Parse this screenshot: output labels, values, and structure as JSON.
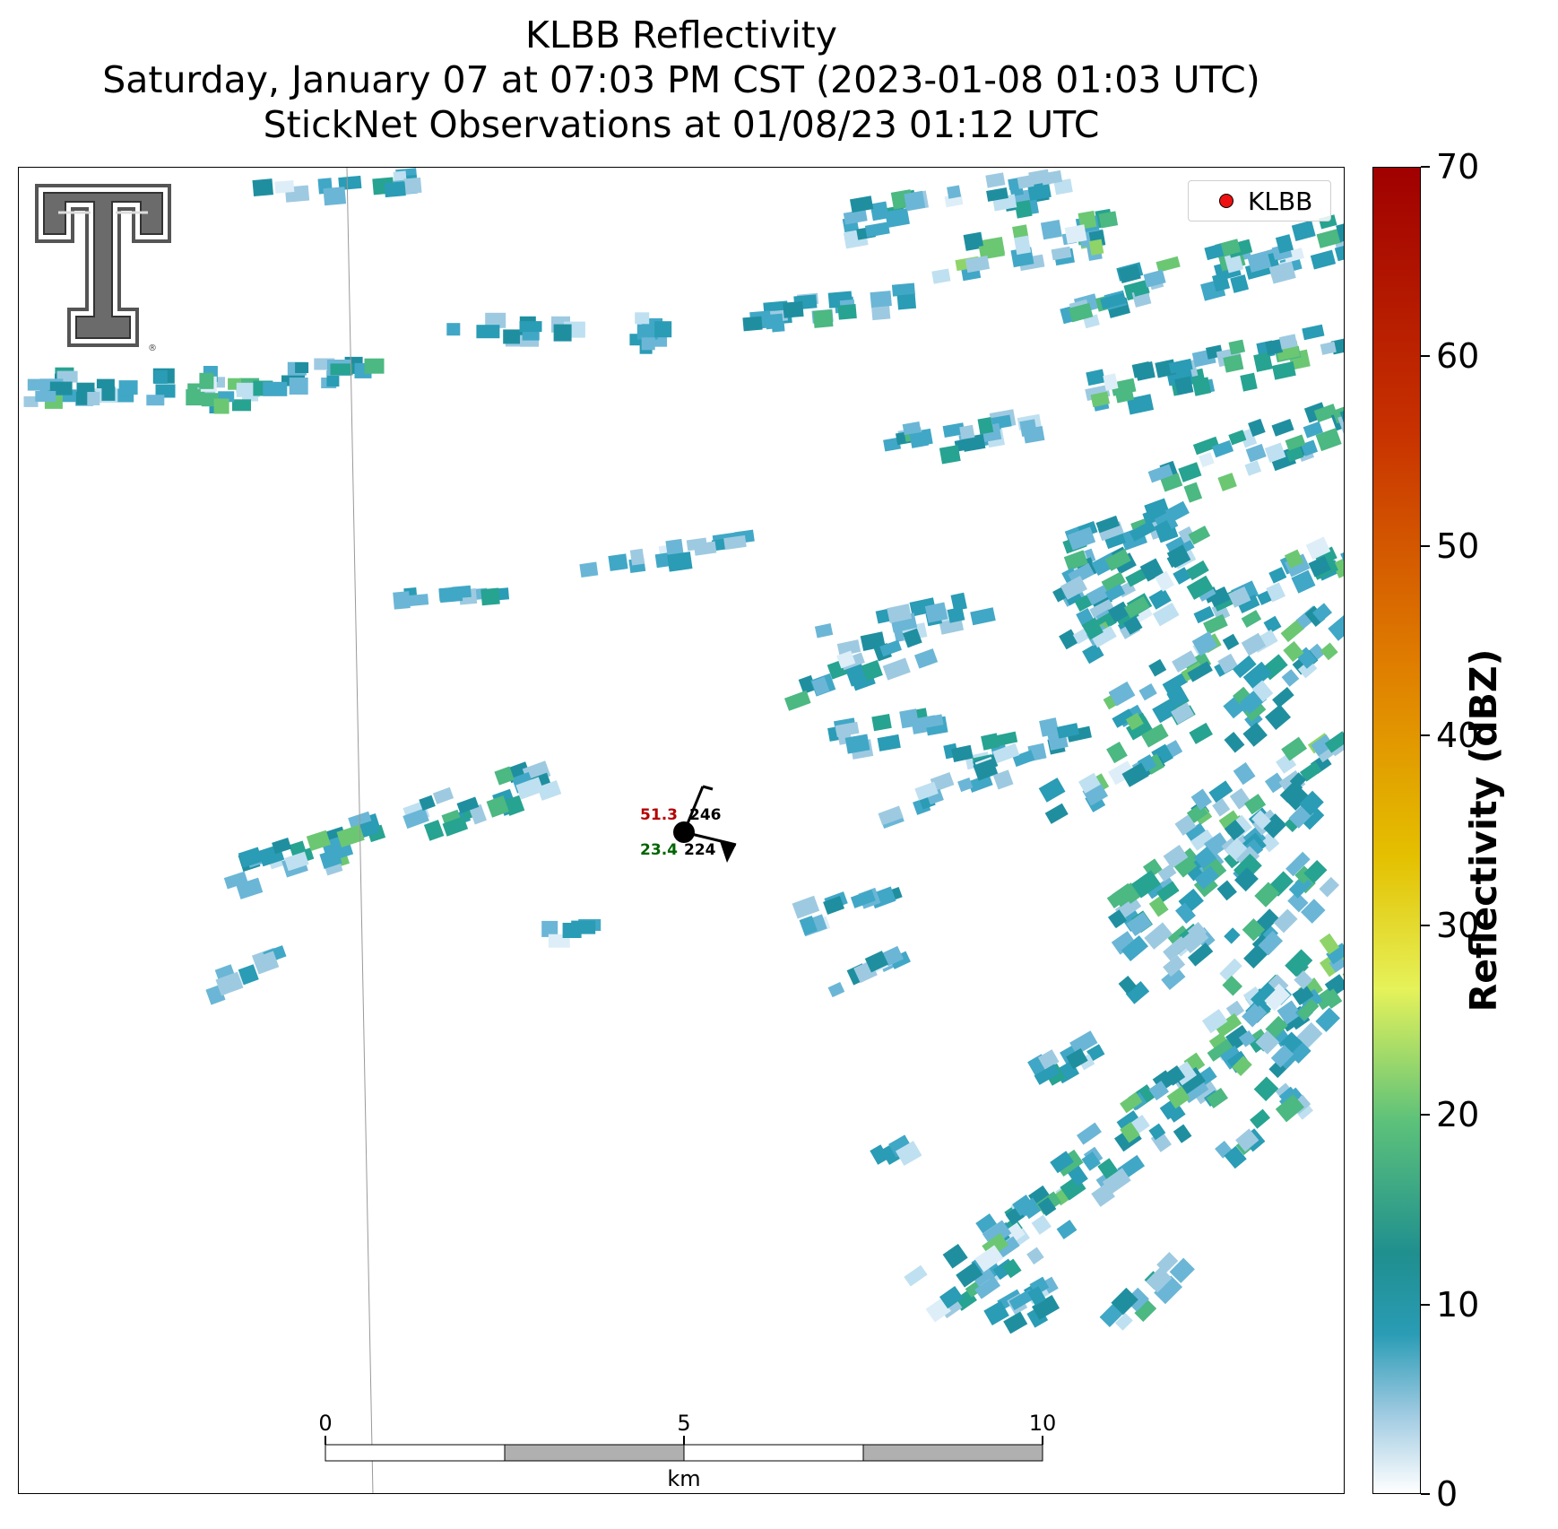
{
  "title": {
    "line1": "KLBB Reflectivity",
    "line2": "Saturday, January 07 at 07:03 PM CST (2023-01-08 01:03 UTC)",
    "line3": "StickNet Observations at 01/08/23 01:12 UTC"
  },
  "legend": {
    "label": "KLBB",
    "marker_color": "#ee1111"
  },
  "station": {
    "temperature": "51.3",
    "dewpoint": "23.4",
    "pressure": "246",
    "secondary": "224",
    "temperature_color": "#b40000",
    "dewpoint_color": "#006400"
  },
  "scale_bar": {
    "unit": "km",
    "ticks": [
      "0",
      "5",
      "10"
    ]
  },
  "colorbar": {
    "label": "Reflectivity (dBZ)",
    "range": [
      0,
      70
    ],
    "ticks": [
      "0",
      "10",
      "20",
      "30",
      "40",
      "50",
      "60",
      "70"
    ],
    "colors": [
      "#ffffff",
      "#9ecae1",
      "#2a9cb5",
      "#1f8f8f",
      "#5cc17a",
      "#e5f25a",
      "#e4c000",
      "#e08000",
      "#c83200",
      "#a00000"
    ]
  },
  "logo": {
    "name": "Texas Tech Double T"
  }
}
